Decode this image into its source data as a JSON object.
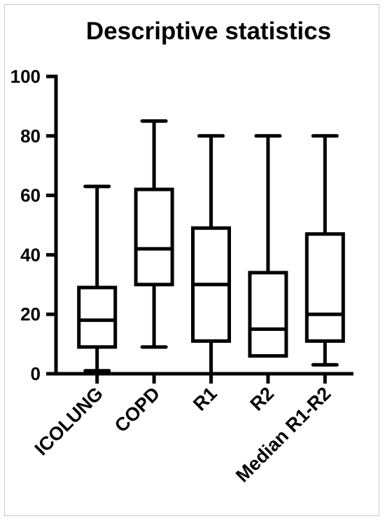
{
  "chart_data": {
    "type": "box",
    "title": "Descriptive statistics",
    "xlabel": "",
    "ylabel": "",
    "ylim": [
      0,
      100
    ],
    "yticks": [
      0,
      20,
      40,
      60,
      80,
      100
    ],
    "grid": false,
    "legend": "none",
    "categories": [
      "ICOLUNG",
      "COPD",
      "R1",
      "R2",
      "Median R1-R2"
    ],
    "boxes": [
      {
        "category": "ICOLUNG",
        "min": 1,
        "q1": 9,
        "median": 18,
        "q3": 29,
        "max": 63
      },
      {
        "category": "COPD",
        "min": 9,
        "q1": 30,
        "median": 42,
        "q3": 62,
        "max": 85
      },
      {
        "category": "R1",
        "min": 0,
        "q1": 11,
        "median": 30,
        "q3": 49,
        "max": 80
      },
      {
        "category": "R2",
        "min": 6,
        "q1": 6,
        "median": 15,
        "q3": 34,
        "max": 80
      },
      {
        "category": "Median R1-R2",
        "min": 3,
        "q1": 11,
        "median": 20,
        "q3": 47,
        "max": 80
      }
    ]
  }
}
